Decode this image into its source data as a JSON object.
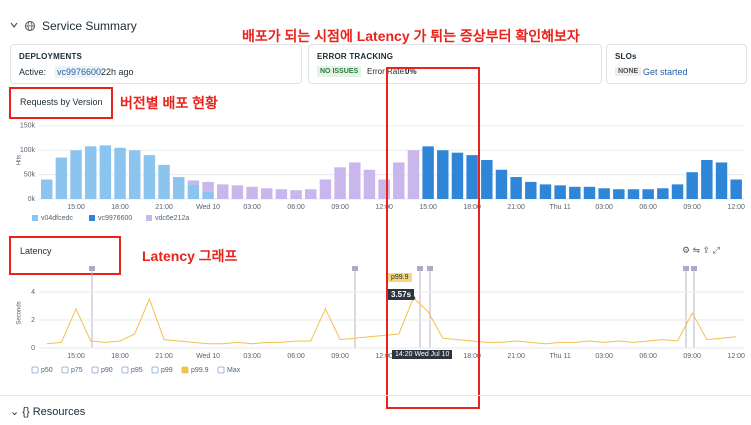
{
  "header": {
    "title": "Service Summary"
  },
  "cards": {
    "deployments": {
      "title": "DEPLOYMENTS",
      "active_label": "Active:",
      "version": "vc9976600",
      "age": "22h ago"
    },
    "error_tracking": {
      "title": "ERROR TRACKING",
      "status": "NO ISSUES",
      "rate_label": "Error Rate:",
      "rate": "0%"
    },
    "slos": {
      "title": "SLOs",
      "status": "NONE",
      "link": "Get started"
    }
  },
  "annotations": {
    "main": "배포가 되는 시점에 Latency 가 튀는 증상부터 확인해보자",
    "versions": "버전별 배포 현황",
    "latency": "Latency 그래프"
  },
  "dropdowns": {
    "requests": "Requests by Version",
    "latency": "Latency"
  },
  "tooltip": {
    "series": "p99.9",
    "value": "3.57s",
    "time": "14:20 Wed Jul 10"
  },
  "footer": {
    "title": "Resources"
  },
  "chart_data": [
    {
      "type": "bar",
      "stacked": true,
      "ylabel": "Hits",
      "categories": [
        null,
        null,
        "15:00",
        null,
        null,
        "18:00",
        null,
        null,
        "21:00",
        null,
        null,
        "Wed 10",
        null,
        null,
        "03:00",
        null,
        null,
        "06:00",
        null,
        null,
        "09:00",
        null,
        null,
        "12:00",
        null,
        null,
        "15:00",
        null,
        null,
        "18:00",
        null,
        null,
        "21:00",
        null,
        null,
        "Thu 11",
        null,
        null,
        "03:00",
        null,
        null,
        "06:00",
        null,
        null,
        "09:00",
        null,
        null,
        "12:00"
      ],
      "ylim": [
        0,
        160000
      ],
      "yticks": [
        {
          "value": 0,
          "label": "0k"
        },
        {
          "value": 50000,
          "label": "50k"
        },
        {
          "value": 100000,
          "label": "100k"
        },
        {
          "value": 150000,
          "label": "150k"
        }
      ],
      "grid": true,
      "series": [
        {
          "name": "v04dfcedc",
          "color": "#8cc4f0",
          "values": [
            40000,
            85000,
            100000,
            108000,
            110000,
            105000,
            100000,
            90000,
            70000,
            45000,
            30000,
            15000,
            0,
            0,
            0,
            0,
            0,
            0,
            0,
            0,
            0,
            0,
            0,
            0,
            0,
            0,
            0,
            0,
            0,
            0,
            0,
            0,
            0,
            0,
            0,
            0,
            0,
            0,
            0,
            0,
            0,
            0,
            0,
            0,
            0,
            0,
            0,
            0
          ]
        },
        {
          "name": "vc9976600",
          "color": "#2f86d8",
          "values": [
            0,
            0,
            0,
            0,
            0,
            0,
            0,
            0,
            0,
            0,
            0,
            0,
            0,
            0,
            0,
            0,
            0,
            0,
            0,
            0,
            0,
            0,
            0,
            0,
            0,
            0,
            108000,
            100000,
            95000,
            90000,
            80000,
            60000,
            45000,
            35000,
            30000,
            28000,
            25000,
            25000,
            22000,
            20000,
            20000,
            20000,
            22000,
            30000,
            55000,
            80000,
            75000,
            40000
          ]
        },
        {
          "name": "vdc6e212a",
          "color": "#c9b6ec",
          "values": [
            0,
            0,
            0,
            0,
            0,
            0,
            0,
            0,
            0,
            0,
            8000,
            20000,
            30000,
            28000,
            25000,
            22000,
            20000,
            18000,
            20000,
            40000,
            65000,
            75000,
            60000,
            40000,
            75000,
            100000,
            0,
            0,
            0,
            0,
            0,
            0,
            0,
            0,
            0,
            0,
            0,
            0,
            0,
            0,
            0,
            0,
            0,
            0,
            0,
            0,
            0,
            0
          ]
        }
      ]
    },
    {
      "type": "line",
      "ylabel": "Seconds",
      "categories": [
        null,
        null,
        "15:00",
        null,
        null,
        "18:00",
        null,
        null,
        "21:00",
        null,
        null,
        "Wed 10",
        null,
        null,
        "03:00",
        null,
        null,
        "06:00",
        null,
        null,
        "09:00",
        null,
        null,
        "12:00",
        null,
        null,
        "15:00",
        null,
        null,
        "18:00",
        null,
        null,
        "21:00",
        null,
        null,
        "Thu 11",
        null,
        null,
        "03:00",
        null,
        null,
        "06:00",
        null,
        null,
        "09:00",
        null,
        null,
        "12:00"
      ],
      "ylim": [
        0,
        5
      ],
      "yticks": [
        0,
        2,
        4
      ],
      "grid": true,
      "legend": [
        "p50",
        "p75",
        "p90",
        "p95",
        "p99",
        "p99.9",
        "Max"
      ],
      "series": [
        {
          "name": "p99.9",
          "color": "#f2c14e",
          "values": [
            0.3,
            0.4,
            2.8,
            0.5,
            0.4,
            0.5,
            1.0,
            3.5,
            0.6,
            0.5,
            0.4,
            0.3,
            0.3,
            0.4,
            0.3,
            0.4,
            0.4,
            0.5,
            0.5,
            2.8,
            0.6,
            0.7,
            0.8,
            0.9,
            1.0,
            3.57,
            2.6,
            0.7,
            0.6,
            0.5,
            0.4,
            0.4,
            0.5,
            0.4,
            0.3,
            0.4,
            0.4,
            0.5,
            0.4,
            0.5,
            0.4,
            0.5,
            0.6,
            0.5,
            2.5,
            0.6,
            0.7,
            0.8
          ]
        }
      ]
    }
  ]
}
